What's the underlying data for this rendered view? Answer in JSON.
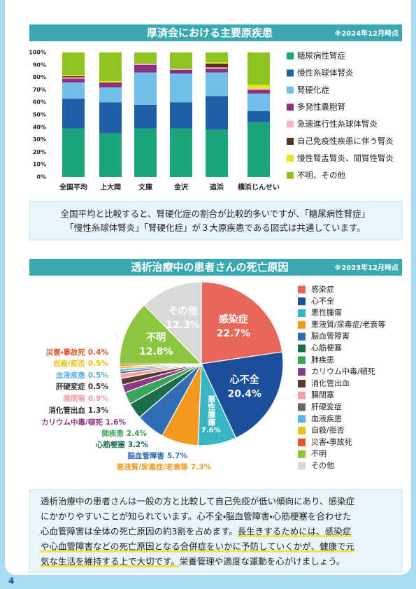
{
  "page_number": "4",
  "chart_data": [
    {
      "type": "bar",
      "stacked": true,
      "title": "厚済会における主要原疾患",
      "subtitle": "※2024年12月時点",
      "categories": [
        "全国平均",
        "上大岡",
        "文庫",
        "金沢",
        "追浜",
        "横浜じんせい"
      ],
      "series": [
        {
          "name": "糖尿病性腎症",
          "color": "#1aa67a",
          "values": [
            39,
            35,
            39,
            39,
            38,
            44
          ]
        },
        {
          "name": "慢性糸球体腎炎",
          "color": "#1f5fa6",
          "values": [
            24,
            25,
            19,
            21,
            27,
            9
          ]
        },
        {
          "name": "腎硬化症",
          "color": "#6fbfe8",
          "values": [
            13,
            12,
            26,
            23,
            19,
            14
          ]
        },
        {
          "name": "多発性嚢胞腎",
          "color": "#8b2f7e",
          "values": [
            3,
            4,
            6,
            3,
            3,
            3
          ]
        },
        {
          "name": "急速進行性糸球体腎炎",
          "color": "#f2b6c6",
          "values": [
            1,
            0,
            1,
            1,
            1,
            1
          ]
        },
        {
          "name": "自己免疫性疾患に伴う腎炎",
          "color": "#5a2d1e",
          "values": [
            1,
            0,
            0,
            0,
            3,
            0
          ]
        },
        {
          "name": "慢性腎盂腎炎、間質性腎炎",
          "color": "#e6e61f",
          "values": [
            1,
            1,
            0,
            0,
            1,
            3
          ]
        },
        {
          "name": "不明、その他",
          "color": "#8fc31f",
          "values": [
            18,
            23,
            9,
            13,
            8,
            26
          ]
        }
      ],
      "ylim": [
        0,
        100
      ],
      "yticks": [
        {
          "value": 0,
          "label": "0%"
        },
        {
          "value": 10,
          "label": "10%"
        },
        {
          "value": 20,
          "label": "20%"
        },
        {
          "value": 30,
          "label": "30%"
        },
        {
          "value": 40,
          "label": "40%"
        },
        {
          "value": 50,
          "label": "50%"
        },
        {
          "value": 60,
          "label": "60%"
        },
        {
          "value": 70,
          "label": "70%"
        },
        {
          "value": 80,
          "label": "80%"
        },
        {
          "value": 90,
          "label": "90%"
        },
        {
          "value": 100,
          "label": "100%"
        }
      ],
      "legend": "right"
    },
    {
      "type": "pie",
      "title": "透析治療中の患者さんの死亡原因",
      "subtitle": "※2023年12月時点",
      "categories": [
        "感染症",
        "心不全",
        "悪性腫瘍",
        "悪液質/尿毒症/老衰等",
        "脳血管障害",
        "心筋梗塞",
        "肺疾患",
        "カリウム中毒/頓死",
        "消化管出血",
        "腸閉塞",
        "肝硬変症",
        "血液疾患",
        "自殺/拒否",
        "災害・事故死",
        "不明",
        "その他"
      ],
      "values": [
        22.7,
        20.4,
        7.6,
        7.3,
        5.7,
        3.2,
        2.4,
        1.6,
        1.3,
        0.9,
        0.5,
        0.5,
        0.5,
        0.4,
        12.8,
        12.3
      ],
      "value_labels": [
        "22.7%",
        "20.4%",
        "7.6%",
        "7.3%",
        "5.7%",
        "3.2%",
        "2.4%",
        "1.6%",
        "1.3%",
        "0.9%",
        "0.5%",
        "0.5%",
        "0.5%",
        "0.4%",
        "12.8%",
        "12.3%"
      ],
      "colors": [
        "#e8665a",
        "#1d4e9a",
        "#38b6c4",
        "#f39a1e",
        "#2f6db5",
        "#1a6e4a",
        "#3aa55a",
        "#8e3a8a",
        "#5a3a2a",
        "#f0a0a8",
        "#666666",
        "#5ab4e5",
        "#e8c21a",
        "#e0552a",
        "#8cc63f",
        "#d9d9d9"
      ],
      "legend": "right"
    }
  ],
  "notes": [
    {
      "lines": [
        [
          "全国平均と比較すると、腎硬化症の割合が比較的多いですが、「糖尿病性腎症」"
        ],
        [
          "「慢性糸球体腎炎」「腎硬化症」が３大原疾患である図式は共通しています。"
        ]
      ]
    },
    {
      "lines": [
        [
          "透析治療中の患者さんは一般の方と比較して自己免疫が低い傾向にあり、感染症"
        ],
        [
          "にかかりやすいことが知られています。心不全・脳血管障害・心筋梗塞を合わせた"
        ],
        [
          "心血管障害は全体の死亡原因の約3割を占めます。",
          "長生きするためには、感染症"
        ],
        [
          "や心血管障害などの死亡原因となる合併症をいかに予防していくかが、健康で元"
        ],
        [
          "気な生活を維持する上で大切です。",
          "栄養管理や適度な運動を心がけましょう。"
        ]
      ]
    }
  ]
}
